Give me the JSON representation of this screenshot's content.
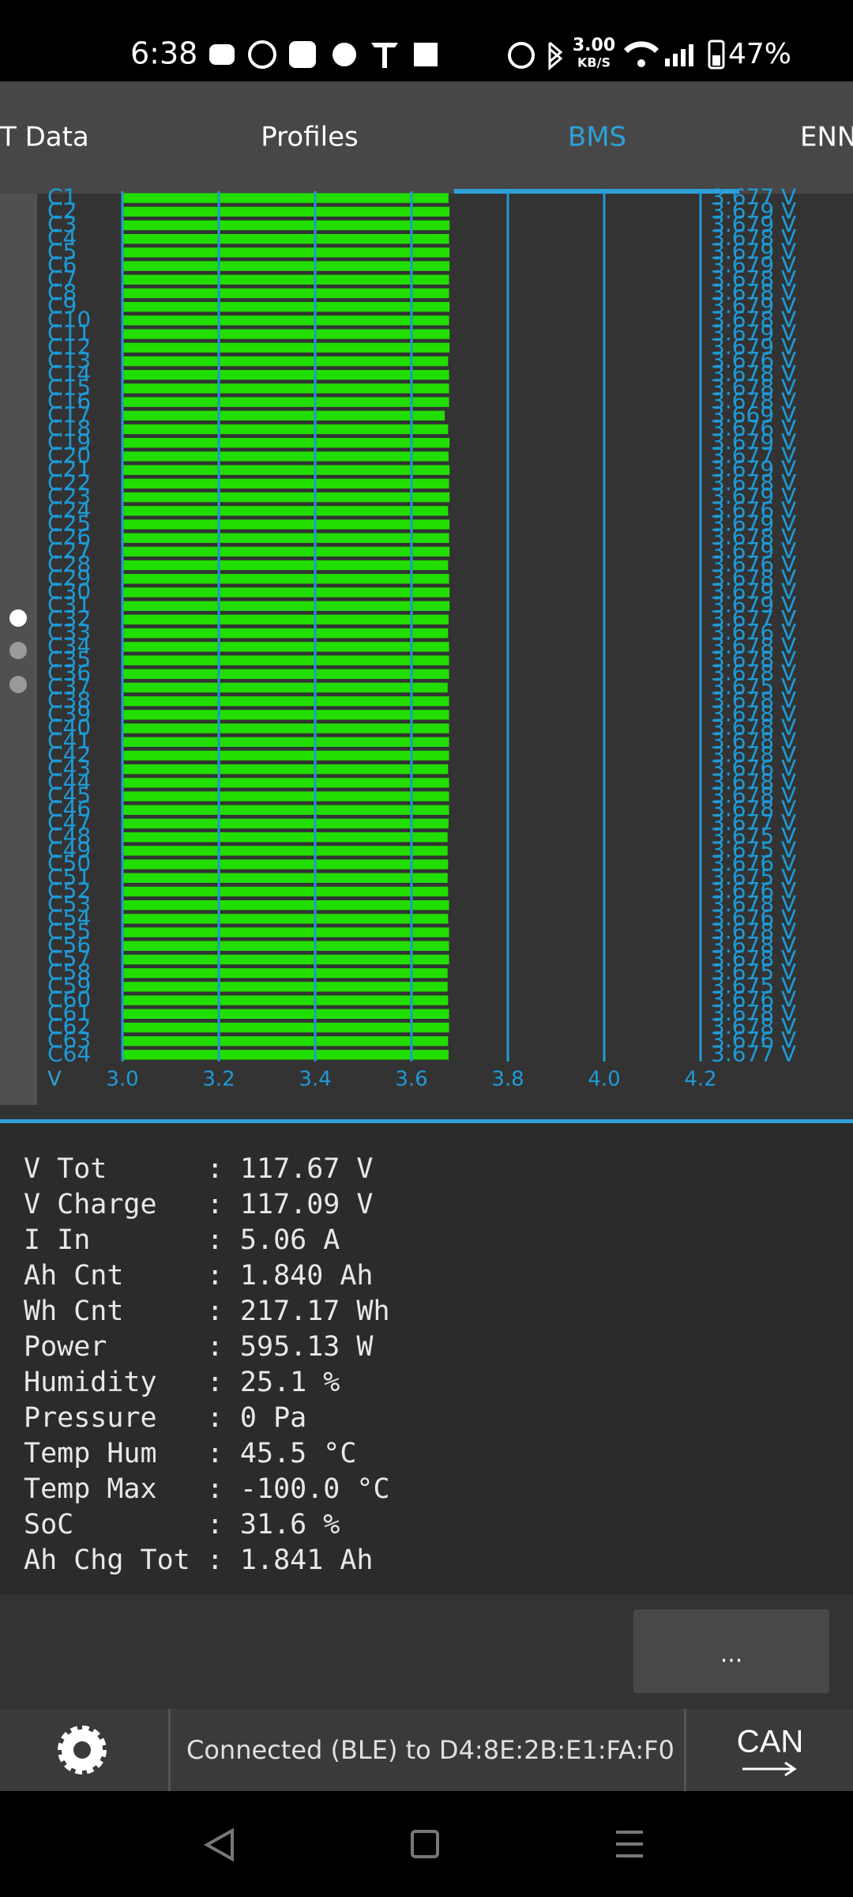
{
  "status_bar": {
    "time": "6:38",
    "speed": "3.00",
    "speed_unit": "KB/S",
    "battery": "47%"
  },
  "tabs": [
    "T Data",
    "Profiles",
    "BMS",
    "ENN"
  ],
  "chart_data": {
    "type": "bar",
    "orientation": "horizontal",
    "color": "#22dd00",
    "grid_color": "#1e9ad6",
    "axis_label": "V",
    "categories": [
      "C1",
      "C2",
      "C3",
      "C4",
      "C5",
      "C6",
      "C7",
      "C8",
      "C9",
      "C10",
      "C11",
      "C12",
      "C13",
      "C14",
      "C15",
      "C16",
      "C17",
      "C18",
      "C19",
      "C20",
      "C21",
      "C22",
      "C23",
      "C24",
      "C25",
      "C26",
      "C27",
      "C28",
      "C29",
      "C30",
      "C31",
      "C32",
      "C33",
      "C34",
      "C35",
      "C36",
      "C37",
      "C38",
      "C39",
      "C40",
      "C41",
      "C42",
      "C43",
      "C44",
      "C45",
      "C46",
      "C47",
      "C48",
      "C49",
      "C50",
      "C51",
      "C52",
      "C53",
      "C54",
      "C55",
      "C56",
      "C57",
      "C58",
      "C59",
      "C60",
      "C61",
      "C62",
      "C63",
      "C64"
    ],
    "values": [
      3.677,
      3.679,
      3.679,
      3.678,
      3.679,
      3.679,
      3.678,
      3.678,
      3.679,
      3.678,
      3.679,
      3.679,
      3.676,
      3.678,
      3.678,
      3.678,
      3.669,
      3.676,
      3.679,
      3.677,
      3.679,
      3.678,
      3.679,
      3.676,
      3.679,
      3.678,
      3.679,
      3.676,
      3.678,
      3.679,
      3.679,
      3.677,
      3.676,
      3.678,
      3.678,
      3.678,
      3.675,
      3.678,
      3.678,
      3.678,
      3.678,
      3.678,
      3.676,
      3.678,
      3.678,
      3.678,
      3.677,
      3.675,
      3.675,
      3.676,
      3.675,
      3.676,
      3.678,
      3.676,
      3.678,
      3.678,
      3.678,
      3.675,
      3.675,
      3.676,
      3.678,
      3.678,
      3.676,
      3.677
    ],
    "value_labels": [
      "3.677 V",
      "3.679 V",
      "3.679 V",
      "3.678 V",
      "3.679 V",
      "3.679 V",
      "3.678 V",
      "3.678 V",
      "3.679 V",
      "3.678 V",
      "3.679 V",
      "3.679 V",
      "3.676 V",
      "3.678 V",
      "3.678 V",
      "3.678 V",
      "3.669 V",
      "3.676 V",
      "3.679 V",
      "3.677 V",
      "3.679 V",
      "3.678 V",
      "3.679 V",
      "3.676 V",
      "3.679 V",
      "3.678 V",
      "3.679 V",
      "3.676 V",
      "3.678 V",
      "3.679 V",
      "3.679 V",
      "3.677 V",
      "3.676 V",
      "3.678 V",
      "3.678 V",
      "3.678 V",
      "3.675 V",
      "3.678 V",
      "3.678 V",
      "3.678 V",
      "3.678 V",
      "3.678 V",
      "3.676 V",
      "3.678 V",
      "3.678 V",
      "3.678 V",
      "3.677 V",
      "3.675 V",
      "3.675 V",
      "3.676 V",
      "3.675 V",
      "3.676 V",
      "3.678 V",
      "3.676 V",
      "3.678 V",
      "3.678 V",
      "3.678 V",
      "3.675 V",
      "3.675 V",
      "3.676 V",
      "3.678 V",
      "3.678 V",
      "3.676 V",
      "3.677 V"
    ],
    "xlim": [
      3.0,
      4.2
    ],
    "xticks": [
      {
        "value": 3,
        "label": "3.0"
      },
      3.2,
      3.4,
      3.6,
      3.8,
      {
        "value": 4,
        "label": "4.0"
      },
      4.2
    ],
    "grid": true
  },
  "stats": [
    "V Tot      : 117.67 V",
    "V Charge   : 117.09 V",
    "I In       : 5.06 A",
    "Ah Cnt     : 1.840 Ah",
    "Wh Cnt     : 217.17 Wh",
    "Power      : 595.13 W",
    "Humidity   : 25.1 %",
    "Pressure   : 0 Pa",
    "Temp Hum   : 45.5 °C",
    "Temp Max   : -100.0 °C",
    "SoC        : 31.6 %",
    "Ah Chg Tot : 1.841 Ah"
  ],
  "button": "...",
  "footer": {
    "connection": "Connected (BLE) to D4:8E:2B:E1:FA:F0",
    "can": "CAN"
  }
}
